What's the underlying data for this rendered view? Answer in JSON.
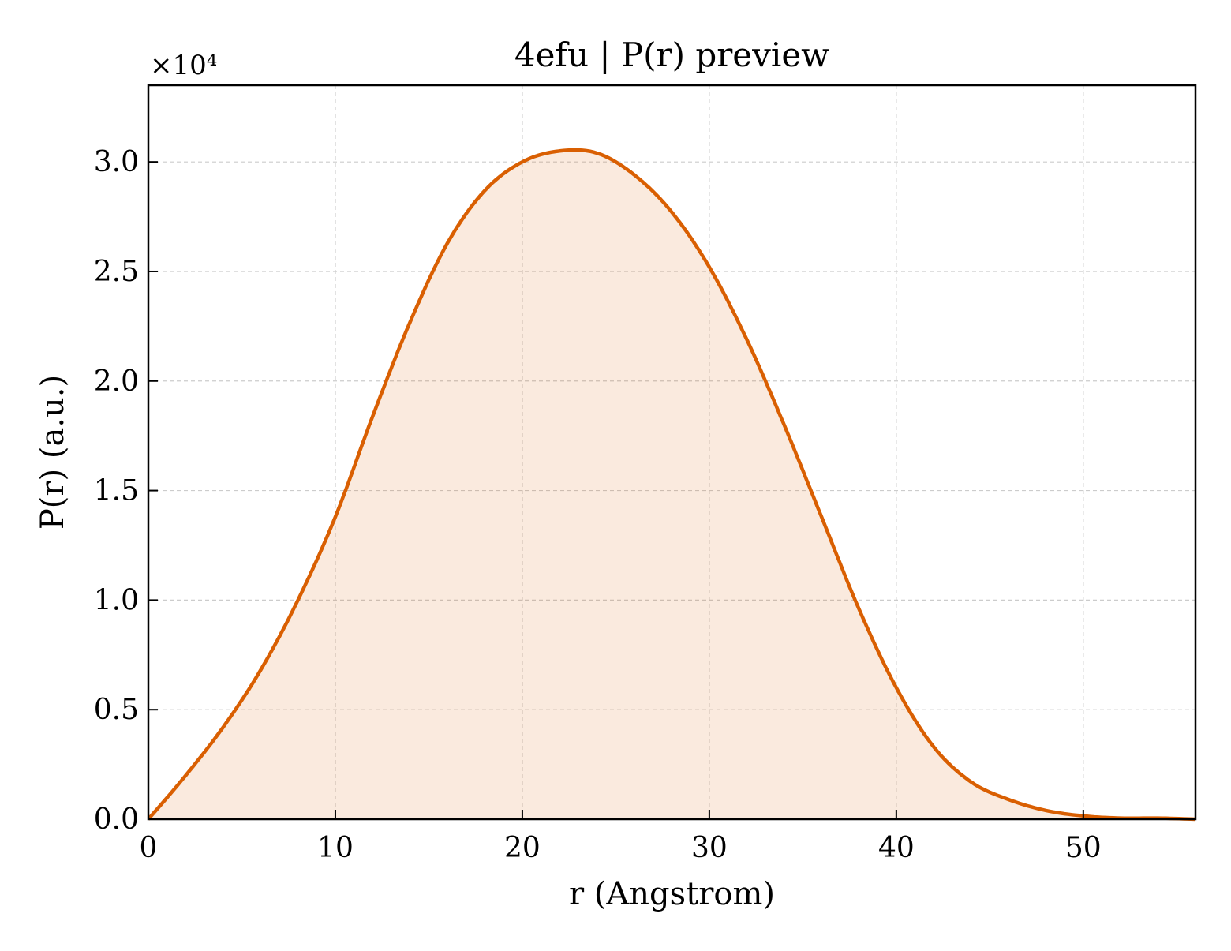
{
  "chart_data": {
    "type": "area",
    "title": "4efu | P(r) preview",
    "xlabel": "r (Angstrom)",
    "ylabel": "P(r) (a.u.)",
    "y_offset_label": "×10⁴",
    "xlim": [
      0,
      56
    ],
    "ylim": [
      0,
      3.35
    ],
    "y_scale_factor": 10000,
    "grid": true,
    "xticks": [
      0,
      10,
      20,
      30,
      40,
      50
    ],
    "xtick_labels": [
      "0",
      "10",
      "20",
      "30",
      "40",
      "50"
    ],
    "yticks": [
      0,
      0.5,
      1.0,
      1.5,
      2.0,
      2.5,
      3.0
    ],
    "ytick_labels": [
      "0.0",
      "0.5",
      "1.0",
      "1.5",
      "2.0",
      "2.5",
      "3.0"
    ],
    "line_color": "#d95f02",
    "fill_color": "#d95f02",
    "fill_opacity": 0.13,
    "series": [
      {
        "x": [
          0,
          2,
          4,
          6,
          8,
          10,
          12,
          14,
          16,
          18,
          20,
          22,
          24,
          26,
          28,
          30,
          32,
          34,
          36,
          38,
          40,
          42,
          44,
          46,
          48,
          50,
          52,
          54,
          56
        ],
        "y": [
          0.0,
          0.2,
          0.42,
          0.68,
          1.0,
          1.38,
          1.84,
          2.27,
          2.63,
          2.87,
          3.0,
          3.05,
          3.04,
          2.94,
          2.77,
          2.52,
          2.19,
          1.8,
          1.38,
          0.96,
          0.6,
          0.33,
          0.17,
          0.09,
          0.04,
          0.015,
          0.005,
          0.005,
          0.0
        ]
      }
    ]
  }
}
